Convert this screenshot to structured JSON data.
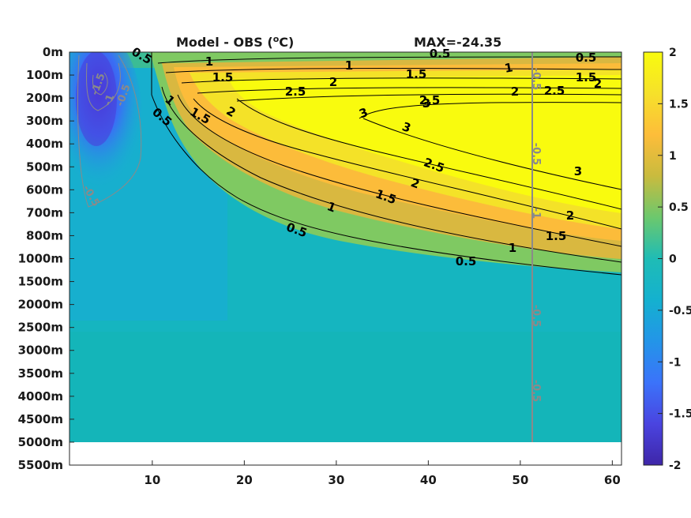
{
  "chart_data": {
    "type": "heatmap",
    "title": "Model - OBS (",
    "title_unit": "C)",
    "title_degree": "o",
    "max_label": "MAX=-24.35",
    "x_ticks": [
      10,
      20,
      30,
      40,
      50,
      60
    ],
    "x_range": [
      1,
      61
    ],
    "y_tick_labels": [
      "0m",
      "100m",
      "200m",
      "300m",
      "400m",
      "500m",
      "600m",
      "700m",
      "800m",
      "1000m",
      "1500m",
      "2000m",
      "2500m",
      "3000m",
      "3500m",
      "4000m",
      "4500m",
      "5000m",
      "5500m"
    ],
    "colorbar": {
      "range": [
        -2,
        2
      ],
      "ticks": [
        "2",
        "1.5",
        "1",
        "0.5",
        "0",
        "-0.5",
        "-1",
        "-1.5",
        "-2"
      ],
      "colormap": [
        "#3e26a8",
        "#4a44e0",
        "#3b73fa",
        "#2395e8",
        "#14b1cf",
        "#2ec2a1",
        "#7ec964",
        "#d1ba3a",
        "#fdbf34",
        "#f7e424",
        "#f9fb0e"
      ]
    },
    "contour_labels_black": [
      "0.5",
      "1",
      "1.5",
      "2",
      "2.5",
      "3",
      "3",
      "2.5",
      "2",
      "1.5",
      "1",
      "0.5",
      "0.5",
      "1",
      "1.5",
      "2",
      "2.5",
      "3",
      "0.5",
      "1",
      "1.5",
      "2",
      "2.5",
      "1.5",
      "2",
      "3",
      "1",
      "1.5",
      "2",
      "0.5",
      "1",
      "0.5"
    ],
    "contour_labels_grey": [
      "-1.5",
      "-1",
      "-0.5",
      "-0.5",
      "-0.5",
      "-0.5",
      "-1",
      "-0.5",
      "-0.5"
    ],
    "vertical_marker_x": 51.3
  }
}
